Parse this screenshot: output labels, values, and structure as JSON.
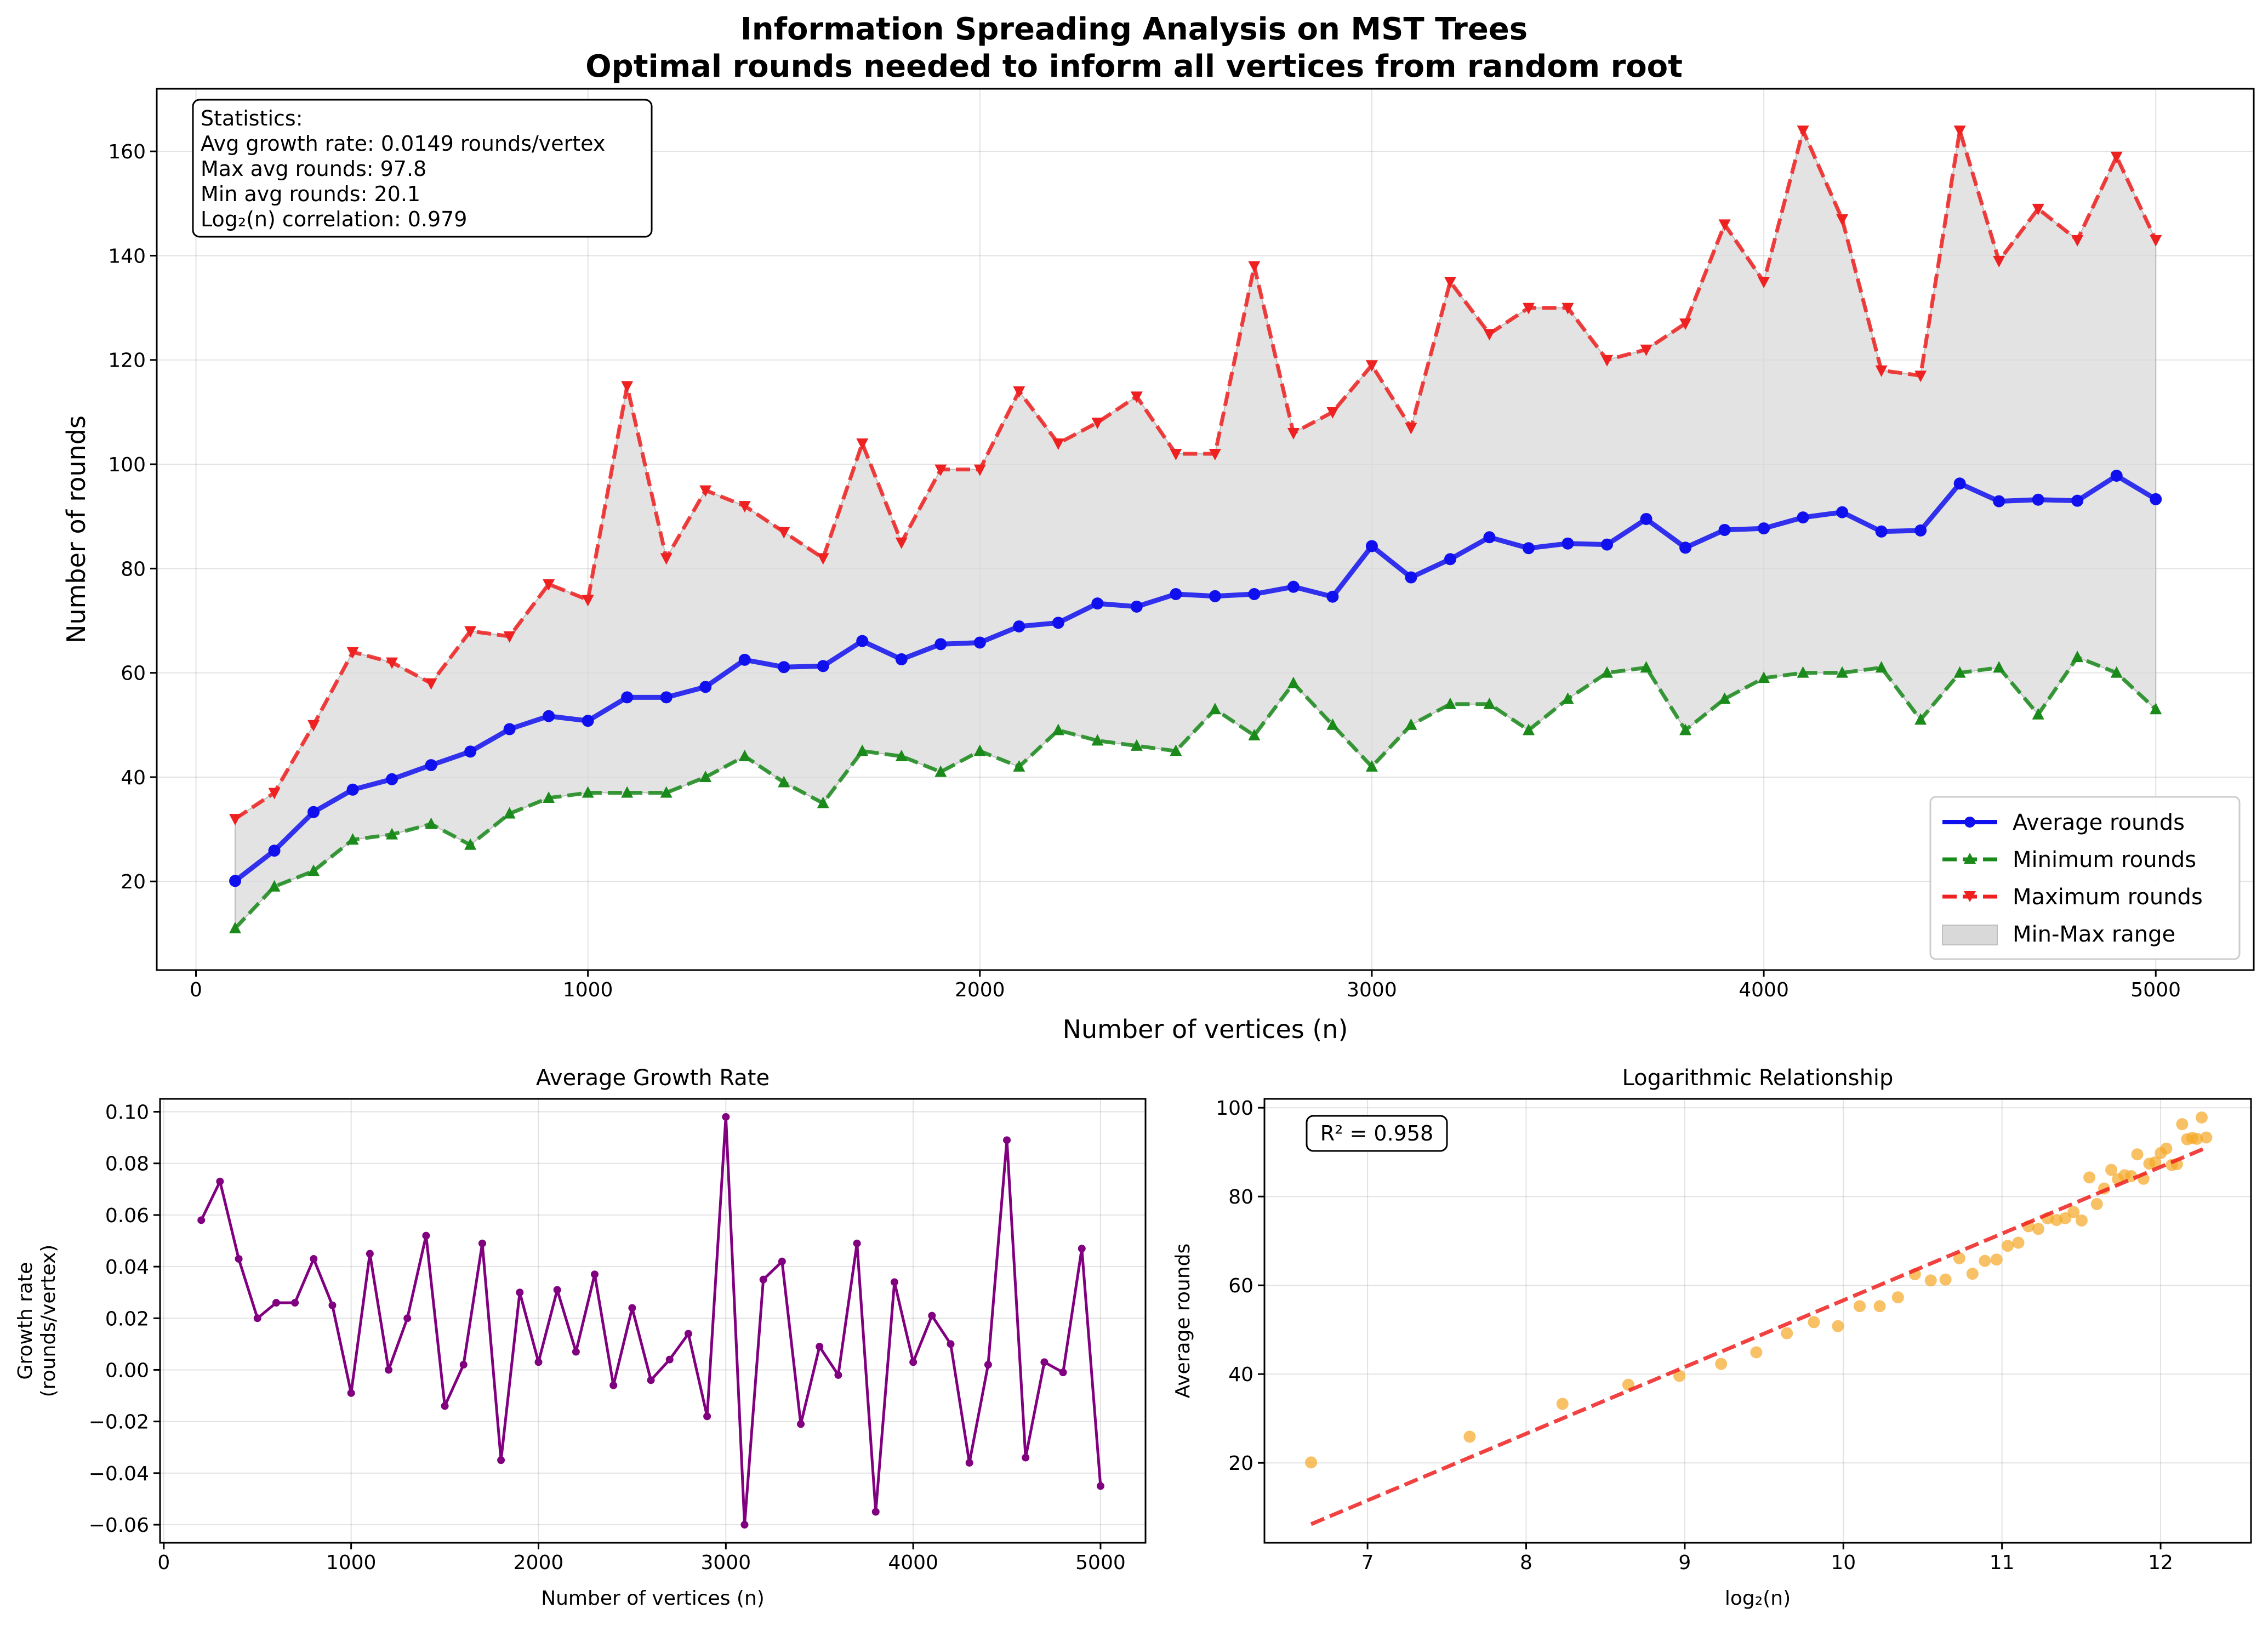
{
  "figure": {
    "title_line1": "Information Spreading Analysis on MST Trees",
    "title_line2": "Optimal rounds needed to inform all vertices from random root"
  },
  "chart_data": [
    {
      "type": "line",
      "xlabel": "Number of vertices (n)",
      "ylabel": "Number of rounds",
      "xlim": [
        -100,
        5250
      ],
      "ylim": [
        3,
        172
      ],
      "xticks": [
        0,
        1000,
        2000,
        3000,
        4000,
        5000
      ],
      "yticks": [
        20,
        40,
        60,
        80,
        100,
        120,
        140,
        160
      ],
      "grid": true,
      "legend_position": "lower-right",
      "x": [
        100,
        200,
        300,
        400,
        500,
        600,
        700,
        800,
        900,
        1000,
        1100,
        1200,
        1300,
        1400,
        1500,
        1600,
        1700,
        1800,
        1900,
        2000,
        2100,
        2200,
        2300,
        2400,
        2500,
        2600,
        2700,
        2800,
        2900,
        3000,
        3100,
        3200,
        3300,
        3400,
        3500,
        3600,
        3700,
        3800,
        3900,
        4000,
        4100,
        4200,
        4300,
        4400,
        4500,
        4600,
        4700,
        4800,
        4900,
        5000
      ],
      "series": [
        {
          "name": "Average rounds",
          "color": "#1010ee",
          "style": "solid",
          "marker": "circle",
          "values": [
            20.1,
            25.9,
            33.3,
            37.6,
            39.6,
            42.3,
            44.9,
            49.2,
            51.7,
            50.8,
            55.3,
            55.3,
            57.3,
            62.5,
            61.1,
            61.3,
            66.1,
            62.6,
            65.5,
            65.8,
            68.9,
            69.6,
            73.3,
            72.7,
            75.1,
            74.7,
            75.1,
            76.5,
            74.6,
            84.3,
            78.3,
            81.8,
            86.0,
            83.9,
            84.8,
            84.6,
            89.5,
            84.0,
            87.4,
            87.7,
            89.8,
            90.8,
            87.1,
            87.3,
            96.3,
            92.9,
            93.2,
            93.0,
            97.8,
            93.3
          ]
        },
        {
          "name": "Minimum rounds",
          "color": "#1a8a1a",
          "style": "dashed",
          "marker": "triangle-up",
          "values": [
            11,
            19,
            22,
            28,
            29,
            31,
            27,
            33,
            36,
            37,
            37,
            37,
            40,
            44,
            39,
            35,
            45,
            44,
            41,
            45,
            42,
            49,
            47,
            46,
            45,
            53,
            48,
            58,
            50,
            42,
            50,
            54,
            54,
            49,
            55,
            60,
            61,
            49,
            55,
            59,
            60,
            60,
            61,
            51,
            60,
            61,
            52,
            63,
            60,
            53
          ]
        },
        {
          "name": "Maximum rounds",
          "color": "#ee2020",
          "style": "dashed",
          "marker": "triangle-down",
          "values": [
            32,
            37,
            50,
            64,
            62,
            58,
            68,
            67,
            77,
            74,
            115,
            82,
            95,
            92,
            87,
            82,
            104,
            85,
            99,
            99,
            114,
            104,
            108,
            113,
            102,
            102,
            138,
            106,
            110,
            119,
            107,
            135,
            125,
            130,
            130,
            120,
            122,
            127,
            146,
            135,
            164,
            147,
            118,
            117,
            164,
            139,
            149,
            143,
            159,
            143
          ]
        }
      ],
      "range_fill": {
        "name": "Min-Max range",
        "color": "#d9d9d9"
      },
      "stats_box": {
        "heading": "Statistics:",
        "line1": "Avg growth rate: 0.0149 rounds/vertex",
        "line2": "Max avg rounds: 97.8",
        "line3": "Min avg rounds: 20.1",
        "line4": "Log₂(n) correlation: 0.979"
      }
    },
    {
      "type": "line",
      "title": "Average Growth Rate",
      "xlabel": "Number of vertices (n)",
      "ylabel_line1": "Growth rate",
      "ylabel_line2": "(rounds/vertex)",
      "xlim": [
        -20,
        5240
      ],
      "ylim": [
        -0.067,
        0.105
      ],
      "xticks": [
        0,
        1000,
        2000,
        3000,
        4000,
        5000
      ],
      "yticks": [
        -0.06,
        -0.04,
        -0.02,
        0.0,
        0.02,
        0.04,
        0.06,
        0.08,
        0.1
      ],
      "ytick_labels": [
        "−0.06",
        "−0.04",
        "−0.02",
        "0.00",
        "0.02",
        "0.04",
        "0.06",
        "0.08",
        "0.10"
      ],
      "grid": true,
      "color": "#800080",
      "x": [
        200,
        300,
        400,
        500,
        600,
        700,
        800,
        900,
        1000,
        1100,
        1200,
        1300,
        1400,
        1500,
        1600,
        1700,
        1800,
        1900,
        2000,
        2100,
        2200,
        2300,
        2400,
        2500,
        2600,
        2700,
        2800,
        2900,
        3000,
        3100,
        3200,
        3300,
        3400,
        3500,
        3600,
        3700,
        3800,
        3900,
        4000,
        4100,
        4200,
        4300,
        4400,
        4500,
        4600,
        4700,
        4800,
        4900,
        5000
      ],
      "values": [
        0.058,
        0.073,
        0.043,
        0.02,
        0.026,
        0.026,
        0.043,
        0.025,
        -0.009,
        0.045,
        0.0,
        0.02,
        0.052,
        -0.014,
        0.002,
        0.049,
        -0.035,
        0.03,
        0.003,
        0.031,
        0.007,
        0.037,
        -0.006,
        0.024,
        -0.004,
        0.004,
        0.014,
        -0.018,
        0.098,
        -0.06,
        0.035,
        0.042,
        -0.021,
        0.009,
        -0.002,
        0.049,
        -0.055,
        0.034,
        0.003,
        0.021,
        0.01,
        -0.036,
        0.002,
        0.089,
        -0.034,
        0.003,
        -0.001,
        0.047,
        -0.045
      ]
    },
    {
      "type": "scatter",
      "title": "Logarithmic Relationship",
      "xlabel": "log₂(n)",
      "ylabel": "Average rounds",
      "xlim": [
        6.35,
        12.57
      ],
      "ylim": [
        2,
        102
      ],
      "xticks": [
        7,
        8,
        9,
        10,
        11,
        12
      ],
      "yticks": [
        20,
        40,
        60,
        80,
        100
      ],
      "grid": true,
      "point_color": "#f5a623",
      "fit_color": "#ee2020",
      "annotation": "R² = 0.958",
      "x": [
        6.644,
        7.644,
        8.229,
        8.644,
        8.966,
        9.229,
        9.451,
        9.644,
        9.814,
        9.966,
        10.103,
        10.229,
        10.344,
        10.451,
        10.551,
        10.644,
        10.731,
        10.814,
        10.892,
        10.966,
        11.036,
        11.103,
        11.167,
        11.229,
        11.288,
        11.344,
        11.399,
        11.451,
        11.502,
        11.551,
        11.598,
        11.644,
        11.689,
        11.731,
        11.773,
        11.814,
        11.853,
        11.892,
        11.929,
        11.966,
        12.001,
        12.036,
        12.07,
        12.103,
        12.136,
        12.167,
        12.199,
        12.229,
        12.259,
        12.288
      ],
      "values": [
        20.1,
        25.9,
        33.3,
        37.6,
        39.6,
        42.3,
        44.9,
        49.2,
        51.7,
        50.8,
        55.3,
        55.3,
        57.3,
        62.5,
        61.1,
        61.3,
        66.1,
        62.6,
        65.5,
        65.8,
        68.9,
        69.6,
        73.3,
        72.7,
        75.1,
        74.7,
        75.1,
        76.5,
        74.6,
        84.3,
        78.3,
        81.8,
        86.0,
        83.9,
        84.8,
        84.6,
        89.5,
        84.0,
        87.4,
        87.7,
        89.8,
        90.8,
        87.1,
        87.3,
        96.3,
        92.9,
        93.2,
        93.0,
        97.8,
        93.3
      ],
      "fit_line": {
        "x": [
          6.644,
          12.288
        ],
        "y": [
          6.2,
          91.0
        ]
      }
    }
  ]
}
